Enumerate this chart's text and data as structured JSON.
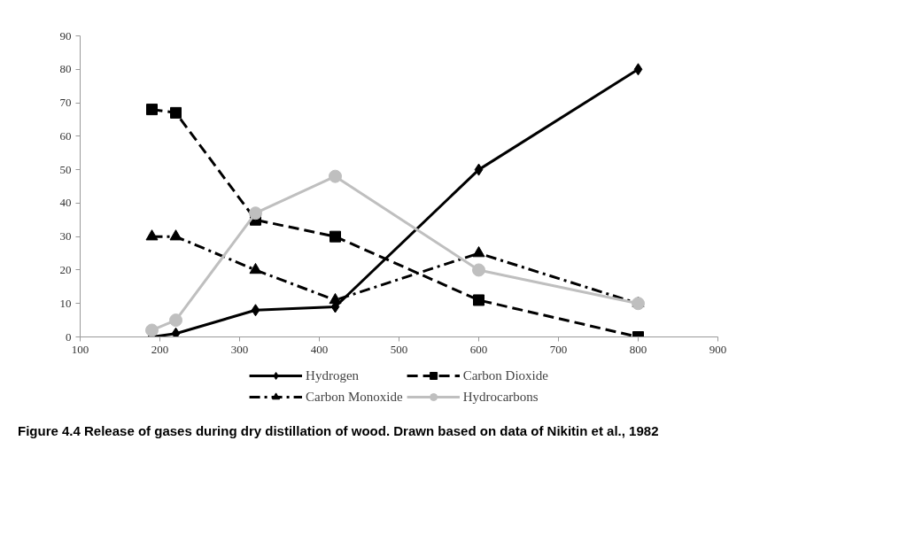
{
  "chart_data": {
    "type": "line",
    "x": [
      190,
      220,
      320,
      420,
      600,
      800
    ],
    "series": [
      {
        "name": "Hydrogen",
        "color": "#000000",
        "values": [
          0,
          1,
          8,
          9,
          50,
          80
        ],
        "marker": "diamond",
        "line_style": "solid"
      },
      {
        "name": "Carbon Dioxide",
        "color": "#000000",
        "values": [
          68,
          67,
          35,
          30,
          11,
          0
        ],
        "marker": "square",
        "line_style": "dashed"
      },
      {
        "name": "Carbon Monoxide",
        "color": "#000000",
        "values": [
          30,
          30,
          20,
          11,
          25,
          10
        ],
        "marker": "triangle",
        "line_style": "dashdot"
      },
      {
        "name": "Hydrocarbons",
        "color": "#bfbfbf",
        "values": [
          2,
          5,
          37,
          48,
          20,
          10
        ],
        "marker": "circle",
        "line_style": "solid"
      }
    ],
    "xlim": [
      100,
      900
    ],
    "xticks": [
      100,
      200,
      300,
      400,
      500,
      600,
      700,
      800,
      900
    ],
    "ylim": [
      0,
      90
    ],
    "yticks": [
      0,
      10,
      20,
      30,
      40,
      50,
      60,
      70,
      80,
      90
    ],
    "grid": false,
    "legend": "bottom",
    "annotations": [
      "Figure 4.4 Release of gases during dry distillation of wood. Drawn based on data of Nikitin et al., 1982"
    ]
  }
}
